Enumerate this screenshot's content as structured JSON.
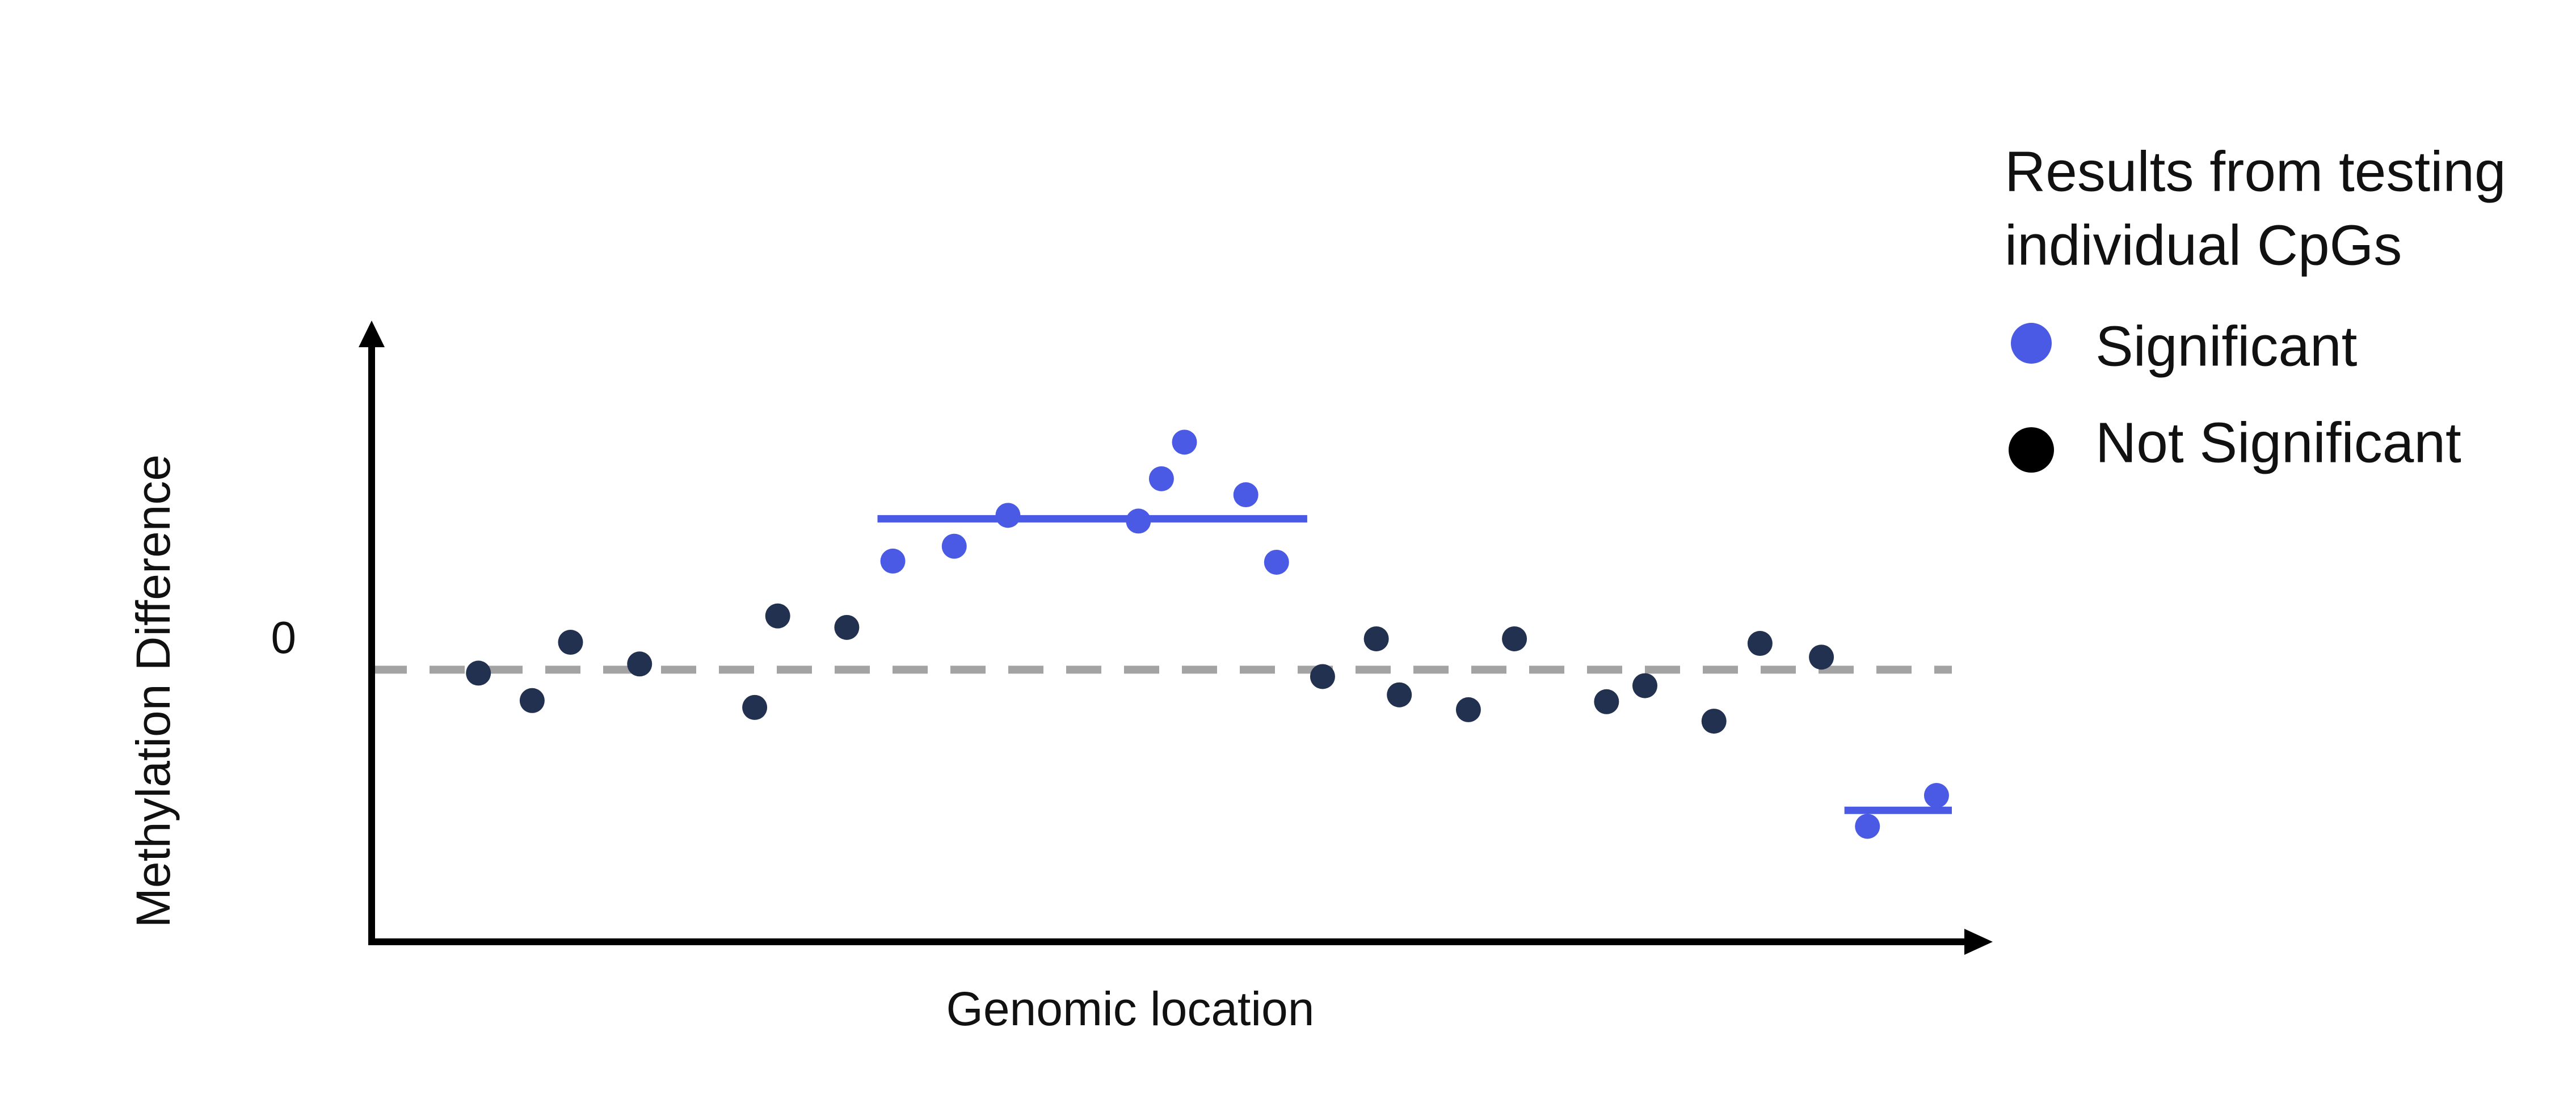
{
  "chart_data": {
    "type": "scatter",
    "title": "",
    "xlabel": "Genomic location",
    "ylabel": "Methylation Difference",
    "y_tick_labels": [
      "0"
    ],
    "legend": {
      "title_lines": [
        "Results from testing",
        "individual CpGs"
      ],
      "placement": "top-right",
      "entries": [
        {
          "label": "Significant",
          "color": "#4a5ae5"
        },
        {
          "label": "Not Significant",
          "color": "#000000"
        }
      ]
    },
    "zero_line": {
      "style": "dashed",
      "color": "#a3a3a3"
    },
    "axis_color": "#000000",
    "colors": {
      "significant": "#4a5ae5",
      "not_significant": "#22314f"
    },
    "series": [
      {
        "category": "Not Significant",
        "color": "#22314f",
        "points": [
          {
            "x": 4,
            "y": -0.03
          },
          {
            "x": 7.5,
            "y": -0.27
          },
          {
            "x": 10,
            "y": 0.24
          },
          {
            "x": 14.5,
            "y": 0.05
          },
          {
            "x": 22,
            "y": -0.33
          },
          {
            "x": 23.5,
            "y": 0.47
          },
          {
            "x": 28,
            "y": 0.37
          },
          {
            "x": 59,
            "y": -0.06
          },
          {
            "x": 62.5,
            "y": 0.27
          },
          {
            "x": 64,
            "y": -0.22
          },
          {
            "x": 68.5,
            "y": -0.35
          },
          {
            "x": 71.5,
            "y": 0.27
          },
          {
            "x": 77.5,
            "y": -0.28
          },
          {
            "x": 80,
            "y": -0.14
          },
          {
            "x": 84.5,
            "y": -0.45
          },
          {
            "x": 87.5,
            "y": 0.23
          },
          {
            "x": 91.5,
            "y": 0.11
          }
        ]
      },
      {
        "category": "Significant",
        "color": "#4a5ae5",
        "points": [
          {
            "x": 31,
            "y": 0.95
          },
          {
            "x": 35,
            "y": 1.08
          },
          {
            "x": 38.5,
            "y": 1.35
          },
          {
            "x": 47,
            "y": 1.3
          },
          {
            "x": 48.5,
            "y": 1.67
          },
          {
            "x": 50,
            "y": 1.99
          },
          {
            "x": 54,
            "y": 1.53
          },
          {
            "x": 56,
            "y": 0.94
          },
          {
            "x": 94.5,
            "y": -1.37
          },
          {
            "x": 99,
            "y": -1.1
          }
        ]
      }
    ],
    "segments": [
      {
        "x_start": 30,
        "x_end": 58,
        "y": 1.32,
        "color": "#4a5ae5"
      },
      {
        "x_start": 93,
        "x_end": 100,
        "y": -1.23,
        "color": "#4a5ae5"
      }
    ],
    "x_range": [
      0,
      100
    ],
    "y_range": [
      -2.38,
      2.88
    ]
  }
}
